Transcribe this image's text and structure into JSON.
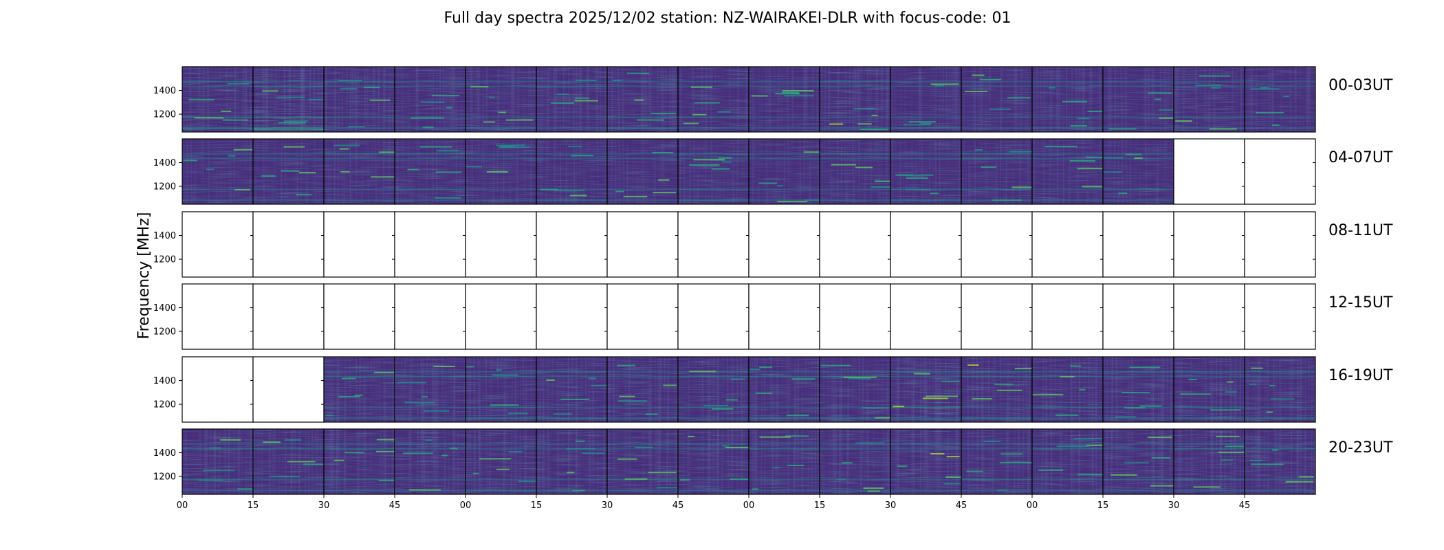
{
  "chart_data": {
    "type": "heatmap",
    "title": "Full day spectra 2025/12/02 station: NZ-WAIRAKEI-DLR with focus-code: 01",
    "ylabel": "Frequency [MHz]",
    "xlabel": "",
    "y_ticks": [
      "1400",
      "1200"
    ],
    "ylim": [
      1050,
      1600
    ],
    "x_tick_labels": [
      "00",
      "15",
      "30",
      "45",
      "00",
      "15",
      "30",
      "45",
      "00",
      "15",
      "30",
      "45",
      "00",
      "15",
      "30",
      "45"
    ],
    "colormap": "viridis",
    "colormap_colors": [
      "#440154",
      "#472d7b",
      "#3b528b",
      "#2c728e",
      "#21918c",
      "#28ae80",
      "#5ec962",
      "#addc30",
      "#fde725"
    ],
    "rows": [
      {
        "label": "00-03UT",
        "panels_with_data": [
          true,
          true,
          true,
          true,
          true,
          true,
          true,
          true,
          true,
          true,
          true,
          true,
          true,
          true,
          true,
          true
        ],
        "panel_intensity": [
          0.35,
          0.55,
          0.3,
          0.25,
          0.25,
          0.25,
          0.3,
          0.25,
          0.2,
          0.4,
          0.2,
          0.2,
          0.2,
          0.2,
          0.3,
          0.2
        ]
      },
      {
        "label": "04-07UT",
        "panels_with_data": [
          true,
          true,
          true,
          true,
          true,
          true,
          true,
          true,
          true,
          true,
          true,
          true,
          true,
          true,
          false,
          false
        ],
        "panel_intensity": [
          0.2,
          0.2,
          0.25,
          0.25,
          0.2,
          0.2,
          0.2,
          0.25,
          0.2,
          0.25,
          0.25,
          0.25,
          0.2,
          0.2,
          0,
          0
        ]
      },
      {
        "label": "08-11UT",
        "panels_with_data": [
          false,
          false,
          false,
          false,
          false,
          false,
          false,
          false,
          false,
          false,
          false,
          false,
          false,
          false,
          false,
          false
        ],
        "panel_intensity": [
          0,
          0,
          0,
          0,
          0,
          0,
          0,
          0,
          0,
          0,
          0,
          0,
          0,
          0,
          0,
          0
        ]
      },
      {
        "label": "12-15UT",
        "panels_with_data": [
          false,
          false,
          false,
          false,
          false,
          false,
          false,
          false,
          false,
          false,
          false,
          false,
          false,
          false,
          false,
          false
        ],
        "panel_intensity": [
          0,
          0,
          0,
          0,
          0,
          0,
          0,
          0,
          0,
          0,
          0,
          0,
          0,
          0,
          0,
          0
        ]
      },
      {
        "label": "16-19UT",
        "panels_with_data": [
          false,
          false,
          true,
          true,
          true,
          true,
          true,
          true,
          true,
          true,
          true,
          true,
          true,
          true,
          true,
          true
        ],
        "panel_intensity": [
          0,
          0,
          0.3,
          0.3,
          0.3,
          0.3,
          0.35,
          0.3,
          0.3,
          0.3,
          0.5,
          0.35,
          0.3,
          0.3,
          0.3,
          0.3
        ]
      },
      {
        "label": "20-23UT",
        "panels_with_data": [
          true,
          true,
          true,
          true,
          true,
          true,
          true,
          true,
          true,
          true,
          true,
          true,
          true,
          true,
          true,
          true
        ],
        "panel_intensity": [
          0.25,
          0.25,
          0.3,
          0.3,
          0.3,
          0.3,
          0.3,
          0.3,
          0.3,
          0.35,
          0.35,
          0.3,
          0.3,
          0.35,
          0.35,
          0.35
        ]
      }
    ]
  }
}
